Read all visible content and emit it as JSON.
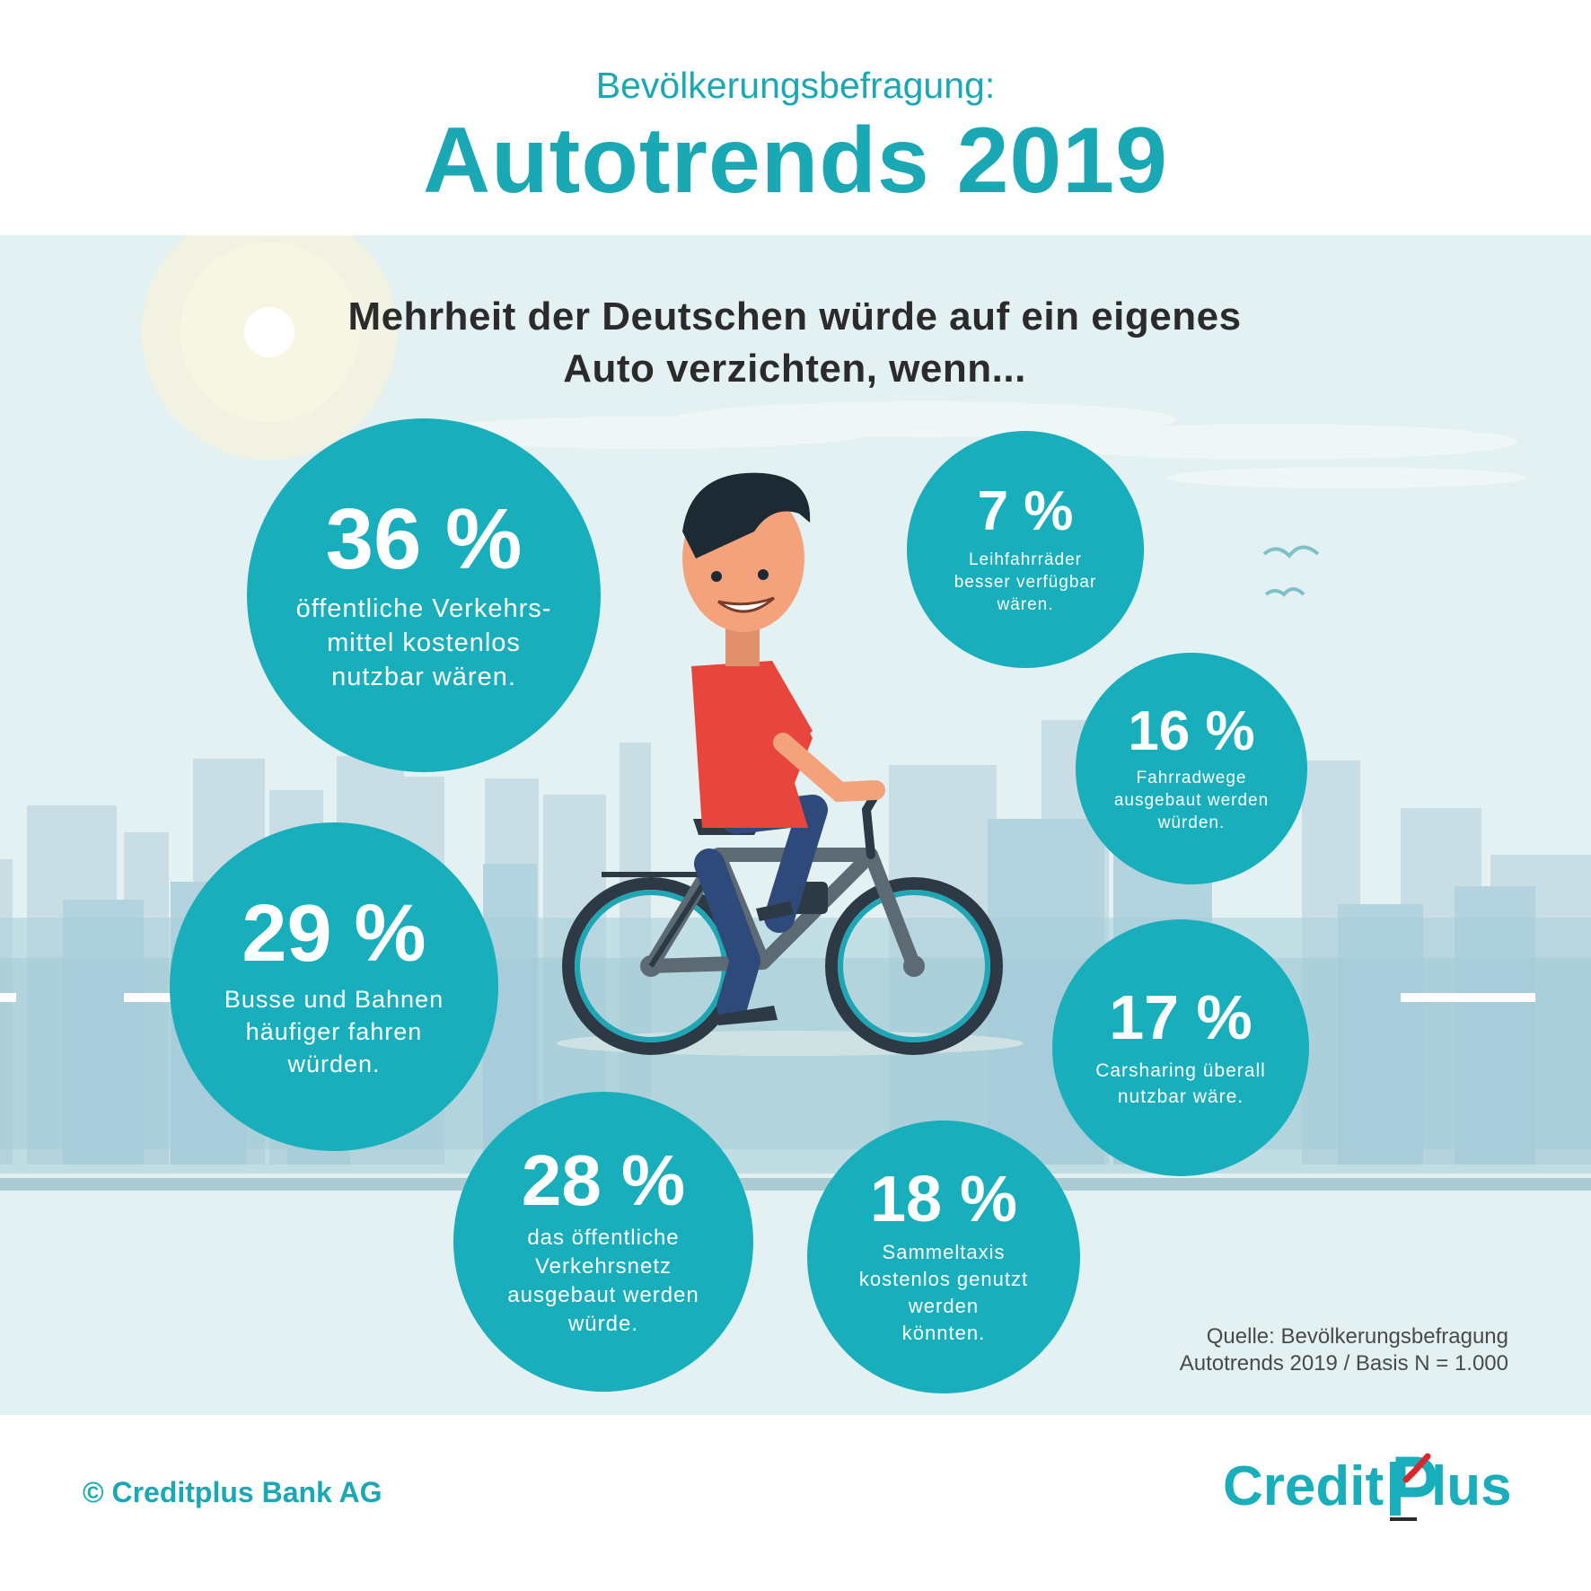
{
  "header": {
    "subtitle": "Bevölkerungsbefragung:",
    "title": "Autotrends 2019"
  },
  "headline": {
    "line1": "Mehrheit der Deutschen würde auf ein eigenes",
    "line2": "Auto verzichten, wenn..."
  },
  "stats": [
    {
      "value": "36 %",
      "lines": [
        "öffentliche Verkehrs-",
        "mittel kostenlos",
        "nutzbar wären."
      ]
    },
    {
      "value": "29 %",
      "lines": [
        "Busse und Bahnen",
        "häufiger fahren",
        "würden."
      ]
    },
    {
      "value": "28 %",
      "lines": [
        "das öffentliche",
        "Verkehrsnetz",
        "ausgebaut werden",
        "würde."
      ]
    },
    {
      "value": "18 %",
      "lines": [
        "Sammeltaxis",
        "kostenlos genutzt",
        "werden",
        "könnten."
      ]
    },
    {
      "value": "17 %",
      "lines": [
        "Carsharing überall",
        "nutzbar wäre."
      ]
    },
    {
      "value": "16 %",
      "lines": [
        "Fahrradwege",
        "ausgebaut werden",
        "würden."
      ]
    },
    {
      "value": "7 %",
      "lines": [
        "Leihfahrräder",
        "besser verfügbar",
        "wären."
      ]
    }
  ],
  "source": {
    "line1": "Quelle: Bevölkerungsbefragung",
    "line2": "Autotrends 2019 / Basis N = 1.000"
  },
  "footer": {
    "copyright": "© Creditplus Bank AG",
    "logo_left": "Credit",
    "logo_right": "lus"
  },
  "colors": {
    "accent": "#18aebb",
    "background": "#e3f1f2",
    "text_dark": "#2b2b2b"
  }
}
